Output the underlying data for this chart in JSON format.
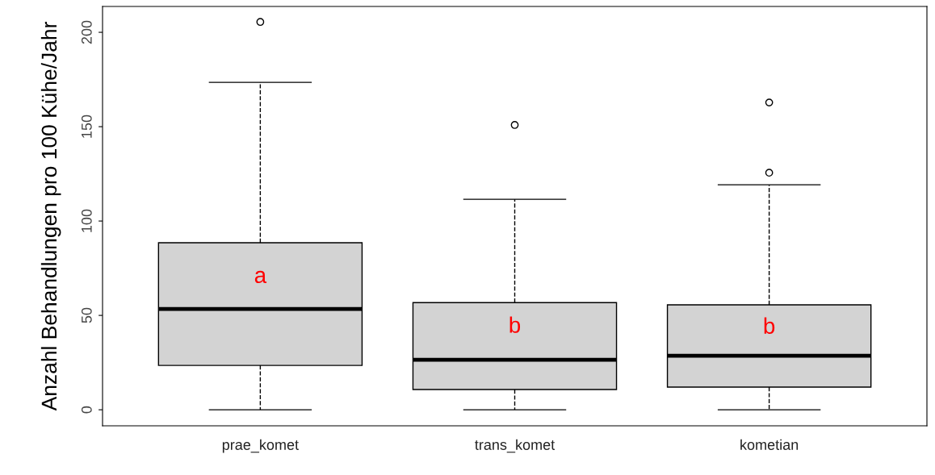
{
  "chart_data": {
    "type": "box",
    "ylabel": "Anzahl Behandlungen pro 100 Kühe/Jahr",
    "categories": [
      "prae_komet",
      "trans_komet",
      "kometian"
    ],
    "boxes": [
      {
        "low": 0,
        "q1": 23.5,
        "median": 53.4,
        "q3": 88.5,
        "high": 173.5,
        "outliers": [
          205.5
        ]
      },
      {
        "low": 0,
        "q1": 10.7,
        "median": 26.5,
        "q3": 56.8,
        "high": 111.5,
        "outliers": [
          150.9
        ]
      },
      {
        "low": 0,
        "q1": 12,
        "median": 28.6,
        "q3": 55.6,
        "high": 119.2,
        "outliers": [
          125.6,
          162.8
        ]
      }
    ],
    "color": "#d3d3d3",
    "ylim": [
      -8.5,
      213.7
    ],
    "yticks": [
      0,
      50,
      100,
      150,
      200
    ],
    "grid": false,
    "line_style": "dashed",
    "annotations": [
      "a",
      "b",
      "b"
    ]
  }
}
